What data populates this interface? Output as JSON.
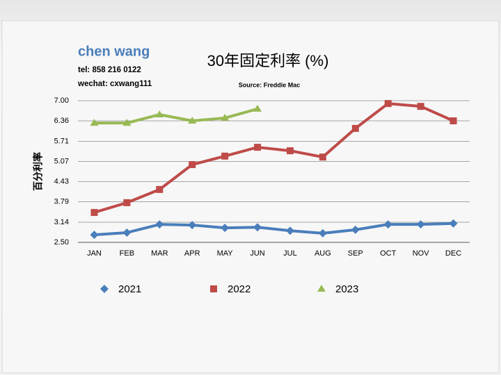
{
  "author": {
    "name": "chen wang",
    "tel": "tel: 858 216 0122",
    "wechat": "wechat: cxwang111"
  },
  "chart_data": {
    "type": "line",
    "title": "30年固定利率 (%)",
    "subtitle": "Source: Freddie Mac",
    "y_label": "百分利率",
    "categories": [
      "JAN",
      "FEB",
      "MAR",
      "APR",
      "MAY",
      "JUN",
      "JUL",
      "AUG",
      "SEP",
      "OCT",
      "NOV",
      "DEC"
    ],
    "series": [
      {
        "name": "2021",
        "color": "#4a7ebb",
        "marker": "diamond",
        "values": [
          2.74,
          2.81,
          3.07,
          3.05,
          2.96,
          2.98,
          2.87,
          2.79,
          2.9,
          3.07,
          3.07,
          3.1
        ]
      },
      {
        "name": "2022",
        "color": "#be4b48",
        "marker": "square",
        "values": [
          3.45,
          3.76,
          4.18,
          4.97,
          5.24,
          5.52,
          5.41,
          5.21,
          6.12,
          6.91,
          6.82,
          6.36
        ]
      },
      {
        "name": "2023",
        "color": "#98b954",
        "marker": "triangle",
        "values": [
          6.29,
          6.29,
          6.56,
          6.36,
          6.45,
          6.74,
          null,
          null,
          null,
          null,
          null,
          null
        ]
      }
    ],
    "ylim": [
      2.5,
      7.0
    ],
    "yticks": [
      {
        "value": 2.5,
        "label": "2.50"
      },
      3.14,
      3.79,
      4.43,
      5.07,
      5.71,
      6.36,
      {
        "value": 7.0,
        "label": "7.00"
      }
    ],
    "grid": true,
    "legend": "bottom"
  }
}
